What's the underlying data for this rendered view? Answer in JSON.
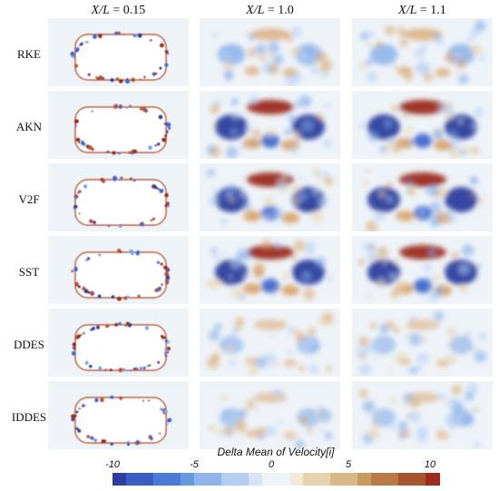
{
  "columns": [
    {
      "var": "X/L",
      "value": " = 0.15"
    },
    {
      "var": "X/L",
      "value": " = 1.0"
    },
    {
      "var": "X/L",
      "value": " = 1.1"
    }
  ],
  "rows": [
    "RKE",
    "AKN",
    "V2F",
    "SST",
    "DDES",
    "IDDES"
  ],
  "colorbar": {
    "title": "Delta Mean of Velocity[i]",
    "ticks": [
      "-10",
      "-5",
      "0",
      "5",
      "10"
    ],
    "min": -10,
    "max": 10,
    "colors": [
      "#2c3f9e",
      "#3a5cc4",
      "#4a7bd8",
      "#6a98e0",
      "#8fb4ea",
      "#b4cdf2",
      "#d6e4f7",
      "#eef3f8",
      "#f2ead8",
      "#e6d3ad",
      "#d9b985",
      "#c99962",
      "#b97a44",
      "#a8542f",
      "#9c2a1e"
    ]
  }
}
